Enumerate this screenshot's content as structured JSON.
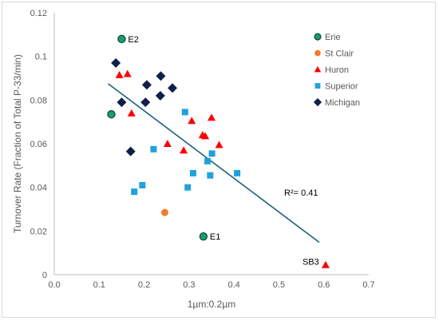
{
  "chart_data": {
    "type": "scatter",
    "xlabel": "1µm:0.2µm",
    "ylabel": "Turnover Rate (Fraction of Total P-33/min)",
    "xlim": [
      0,
      0.7
    ],
    "ylim": [
      0,
      0.12
    ],
    "x_ticks": [
      "0.0",
      "0.1",
      "0.2",
      "0.3",
      "0.4",
      "0.5",
      "0.6",
      "0.7"
    ],
    "y_ticks": [
      "0",
      "0.02",
      "0.04",
      "0.06",
      "0.08",
      "0.1",
      "0.12"
    ],
    "grid": false,
    "legend_position": "top-right",
    "series": [
      {
        "name": "Erie",
        "marker": "circle",
        "color": "#1e9e6e",
        "edge": "#0b5a3c",
        "points": [
          [
            0.15,
            0.108
          ],
          [
            0.127,
            0.0735
          ],
          [
            0.332,
            0.0175
          ]
        ]
      },
      {
        "name": "St Clair",
        "marker": "circle",
        "color": "#ed7d31",
        "points": [
          [
            0.246,
            0.0285
          ]
        ]
      },
      {
        "name": "Huron",
        "marker": "triangle",
        "color": "#ff0000",
        "points": [
          [
            0.145,
            0.0915
          ],
          [
            0.163,
            0.092
          ],
          [
            0.172,
            0.074
          ],
          [
            0.252,
            0.06
          ],
          [
            0.288,
            0.057
          ],
          [
            0.306,
            0.0705
          ],
          [
            0.33,
            0.064
          ],
          [
            0.336,
            0.0635
          ],
          [
            0.35,
            0.072
          ],
          [
            0.367,
            0.0595
          ],
          [
            0.604,
            0.0045
          ]
        ]
      },
      {
        "name": "Superior",
        "marker": "square",
        "color": "#1fa2dc",
        "points": [
          [
            0.178,
            0.038
          ],
          [
            0.196,
            0.041
          ],
          [
            0.221,
            0.0575
          ],
          [
            0.291,
            0.0745
          ],
          [
            0.297,
            0.04
          ],
          [
            0.309,
            0.0465
          ],
          [
            0.341,
            0.052
          ],
          [
            0.347,
            0.0455
          ],
          [
            0.351,
            0.0555
          ],
          [
            0.407,
            0.0465
          ]
        ]
      },
      {
        "name": "Michigan",
        "marker": "diamond",
        "color": "#0f1f4b",
        "points": [
          [
            0.137,
            0.097
          ],
          [
            0.15,
            0.079
          ],
          [
            0.17,
            0.0565
          ],
          [
            0.203,
            0.079
          ],
          [
            0.206,
            0.087
          ],
          [
            0.236,
            0.082
          ],
          [
            0.237,
            0.091
          ],
          [
            0.263,
            0.0855
          ]
        ]
      }
    ],
    "trendline": {
      "color": "#1f5f7a",
      "x": [
        0.12,
        0.59
      ],
      "y": [
        0.0875,
        0.0148
      ],
      "label": "R²= 0.41"
    },
    "annotations": [
      {
        "text": "E2",
        "x": 0.15,
        "y": 0.108
      },
      {
        "text": "E1",
        "x": 0.332,
        "y": 0.0175
      },
      {
        "text": "SB3",
        "x": 0.604,
        "y": 0.0045
      }
    ]
  }
}
